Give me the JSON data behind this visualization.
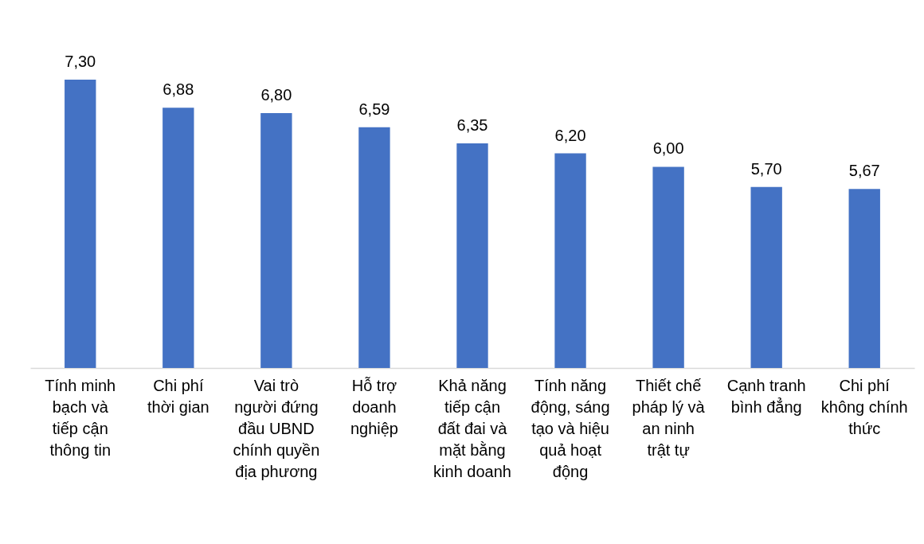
{
  "chart_data": {
    "type": "bar",
    "categories": [
      "Tính minh bạch và tiếp cận thông tin",
      "Chi phí thời gian",
      "Vai trò người đứng đầu UBND chính quyền địa phương",
      "Hỗ trợ doanh nghiệp",
      "Khả năng tiếp cận đất đai và mặt bằng kinh doanh",
      "Tính năng động, sáng tạo và hiệu quả hoạt động",
      "Thiết chế pháp lý và an ninh trật tự",
      "Cạnh tranh bình đẳng",
      "Chi phí không chính thức"
    ],
    "values": [
      7.3,
      6.88,
      6.8,
      6.59,
      6.35,
      6.2,
      6.0,
      5.7,
      5.67
    ],
    "value_labels": [
      "7,30",
      "6,88",
      "6,80",
      "6,59",
      "6,35",
      "6,20",
      "6,00",
      "5,70",
      "5,67"
    ],
    "color": "#4472c4",
    "ylim": [
      3,
      7.3
    ],
    "tick_labels": "x"
  }
}
